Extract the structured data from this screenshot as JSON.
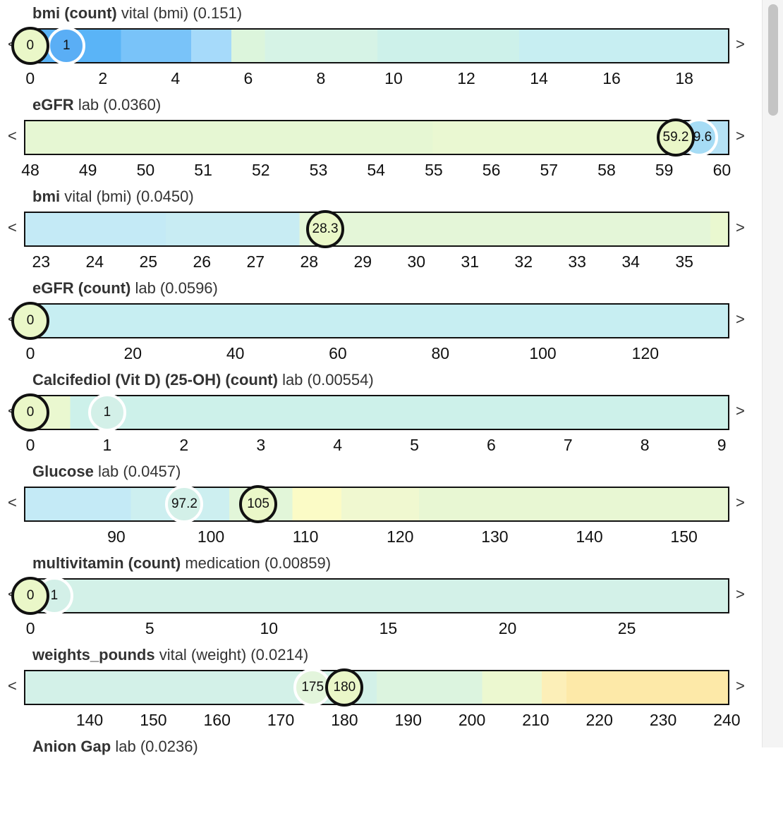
{
  "nav": {
    "prev": "<",
    "next": ">"
  },
  "rows": [
    {
      "name": "bmi (count)",
      "detail": "vital (bmi) (0.151)",
      "xlim": [
        -0.17,
        19.24
      ],
      "ticks": [
        0,
        2,
        4,
        6,
        8,
        10,
        12,
        14,
        16,
        18
      ],
      "markers": [
        {
          "label": "1",
          "value": 1,
          "current": false,
          "color": "#5aaef5"
        },
        {
          "label": "0",
          "value": 0,
          "current": true,
          "color": "#eaf7c8"
        }
      ]
    },
    {
      "name": "eGFR",
      "detail": "lab (0.0360)",
      "xlim": [
        47.89,
        60.13
      ],
      "ticks": [
        48,
        49,
        50,
        51,
        52,
        53,
        54,
        55,
        56,
        57,
        58,
        59,
        60
      ],
      "markers": [
        {
          "label": "59.6",
          "value": 59.6,
          "current": false,
          "color": "#a6dcf5"
        },
        {
          "label": "59.2",
          "value": 59.2,
          "current": true,
          "color": "#eaf7c8"
        }
      ]
    },
    {
      "name": "bmi",
      "detail": "vital (bmi) (0.0450)",
      "xlim": [
        22.68,
        35.84
      ],
      "ticks": [
        23,
        24,
        25,
        26,
        27,
        28,
        29,
        30,
        31,
        32,
        33,
        34,
        35
      ],
      "markers": [
        {
          "label": "28.3",
          "value": 28.3,
          "current": true,
          "color": "#eaf7c8"
        }
      ]
    },
    {
      "name": "eGFR (count)",
      "detail": "lab (0.0596)",
      "xlim": [
        -1.24,
        136.4
      ],
      "ticks": [
        0,
        20,
        40,
        60,
        80,
        100,
        120
      ],
      "markers": [
        {
          "label": "0",
          "value": 0,
          "current": true,
          "color": "#eaf7c8"
        }
      ]
    },
    {
      "name": "Calcifediol (Vit D) (25-OH) (count)",
      "detail": "lab (0.00554)",
      "xlim": [
        -0.083,
        9.1
      ],
      "ticks": [
        0,
        1,
        2,
        3,
        4,
        5,
        6,
        7,
        8,
        9
      ],
      "markers": [
        {
          "label": "1",
          "value": 1,
          "current": false,
          "color": "#d3f0e8"
        },
        {
          "label": "0",
          "value": 0,
          "current": true,
          "color": "#eaf7c8"
        }
      ]
    },
    {
      "name": "Glucose",
      "detail": "lab (0.0457)",
      "xlim": [
        80.24,
        154.8
      ],
      "ticks": [
        90,
        100,
        110,
        120,
        130,
        140,
        150
      ],
      "markers": [
        {
          "label": "97.2",
          "value": 97.2,
          "current": false,
          "color": "#d3f0e8"
        },
        {
          "label": "105",
          "value": 105,
          "current": true,
          "color": "#eaf7c8"
        }
      ]
    },
    {
      "name": "multivitamin (count)",
      "detail": "medication (0.00859)",
      "xlim": [
        -0.27,
        29.3
      ],
      "ticks": [
        0,
        5,
        10,
        15,
        20,
        25
      ],
      "markers": [
        {
          "label": "1",
          "value": 1,
          "current": false,
          "color": "#d3f0e8"
        },
        {
          "label": "0",
          "value": 0,
          "current": true,
          "color": "#eaf7c8"
        }
      ]
    },
    {
      "name": "weights_pounds",
      "detail": "vital (weight) (0.0214)",
      "xlim": [
        129.7,
        240.4
      ],
      "ticks": [
        140,
        150,
        160,
        170,
        180,
        190,
        200,
        210,
        220,
        230,
        240
      ],
      "markers": [
        {
          "label": "175",
          "value": 175,
          "current": false,
          "color": "#e3f5dc"
        },
        {
          "label": "180",
          "value": 180,
          "current": true,
          "color": "#eaf7c8"
        }
      ]
    },
    {
      "name": "Anion Gap",
      "detail": "lab (0.0236)"
    }
  ]
}
